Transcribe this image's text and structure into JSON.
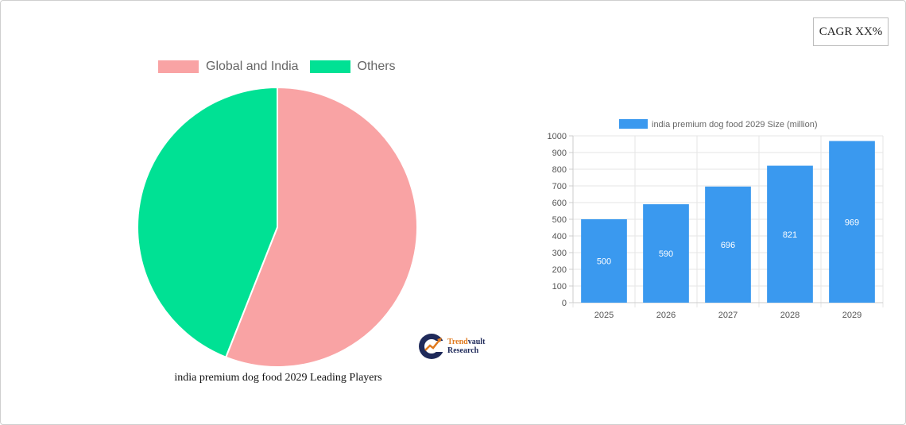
{
  "cagr_label": "CAGR XX%",
  "chart_data": [
    {
      "type": "pie",
      "title": "india premium dog food 2029 Leading Players",
      "legend_position": "top",
      "slices": [
        {
          "name": "Global and India",
          "value": 56,
          "color": "#f9a3a4"
        },
        {
          "name": "Others",
          "value": 44,
          "color": "#00e194"
        }
      ]
    },
    {
      "type": "bar",
      "legend_position": "top",
      "series": [
        {
          "name": "india premium dog food 2029 Size (million)",
          "color": "#3a99ef",
          "values": [
            500,
            590,
            696,
            821,
            969
          ]
        }
      ],
      "categories": [
        "2025",
        "2026",
        "2027",
        "2028",
        "2029"
      ],
      "ylim": [
        0,
        1000
      ],
      "yticks": [
        0,
        100,
        200,
        300,
        400,
        500,
        600,
        700,
        800,
        900,
        1000
      ],
      "grid": true,
      "data_labels": true
    }
  ],
  "logo": {
    "trend": "Trend",
    "vault": "vault",
    "research": "Research"
  }
}
